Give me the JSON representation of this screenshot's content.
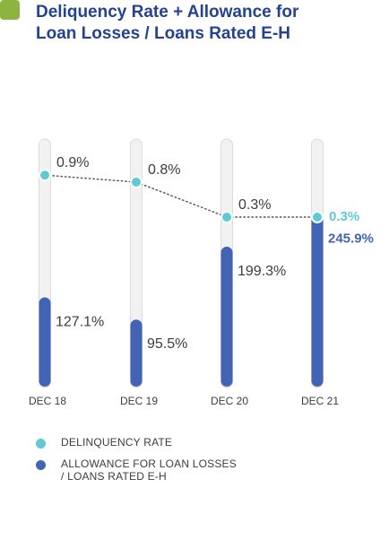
{
  "header": {
    "title_line1": "Deliquency Rate + Allowance for",
    "title_line2": "Loan Losses / Loans Rated E-H"
  },
  "legend": {
    "delinquency_label": "DELINQUENCY RATE",
    "allowance_label_line1": "ALLOWANCE FOR LOAN LOSSES",
    "allowance_label_line2": "/ LOANS RATED E-H"
  },
  "colors": {
    "accent_square": "#8db43e",
    "title": "#24438f",
    "delinquency": "#5ccbd3",
    "allowance": "#4364b5",
    "track": "#f1f1f1",
    "track_border": "#dcdcdc",
    "connector": "#555555",
    "label_text": "#3d3d3d"
  },
  "chart_data": {
    "type": "bar",
    "categories": [
      "DEC 18",
      "DEC 19",
      "DEC 20",
      "DEC 21"
    ],
    "series": [
      {
        "name": "DELINQUENCY RATE",
        "kind": "line",
        "values": [
          0.9,
          0.8,
          0.3,
          0.3
        ],
        "labels": [
          "0.9%",
          "0.8%",
          "0.3%",
          "0.3%"
        ],
        "highlight_last": true
      },
      {
        "name": "ALLOWANCE FOR LOAN LOSSES / LOANS RATED E-H",
        "kind": "bar",
        "values": [
          127.1,
          95.5,
          199.3,
          245.9
        ],
        "labels": [
          "127.1%",
          "95.5%",
          "199.3%",
          "245.9%"
        ],
        "highlight_last": true
      }
    ],
    "legend_position": "bottom-left",
    "grid": false
  }
}
